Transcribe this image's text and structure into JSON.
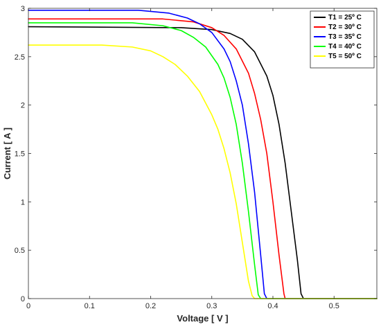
{
  "chart_data": {
    "type": "line",
    "xlabel": "Voltage [ V ]",
    "ylabel": "Current [ A ]",
    "xlim": [
      0,
      0.57
    ],
    "ylim": [
      0,
      3
    ],
    "x_ticks": [
      {
        "value": 0,
        "label": "0"
      },
      {
        "value": 0.1,
        "label": "0.1"
      },
      {
        "value": 0.2,
        "label": "0.2"
      },
      {
        "value": 0.3,
        "label": "0.3"
      },
      {
        "value": 0.4,
        "label": "0.4"
      },
      {
        "value": 0.5,
        "label": "0.5"
      }
    ],
    "y_ticks": [
      {
        "value": 0,
        "label": "0"
      },
      {
        "value": 0.5,
        "label": "0.5"
      },
      {
        "value": 1,
        "label": "1"
      },
      {
        "value": 1.5,
        "label": "1.5"
      },
      {
        "value": 2,
        "label": "2"
      },
      {
        "value": 2.5,
        "label": "2.5"
      },
      {
        "value": 3,
        "label": "3"
      }
    ],
    "grid": false,
    "legend_position": "top-right",
    "series": [
      {
        "name": "T1 = 25º C",
        "color": "#000000",
        "x": [
          0,
          0.25,
          0.3,
          0.33,
          0.35,
          0.37,
          0.39,
          0.4,
          0.41,
          0.42,
          0.43,
          0.44,
          0.446,
          0.45,
          0.57
        ],
        "y": [
          2.81,
          2.8,
          2.78,
          2.74,
          2.68,
          2.55,
          2.3,
          2.1,
          1.8,
          1.4,
          0.9,
          0.4,
          0.05,
          0,
          0
        ]
      },
      {
        "name": "T2 = 30º C",
        "color": "#ff0000",
        "x": [
          0,
          0.22,
          0.27,
          0.3,
          0.32,
          0.34,
          0.36,
          0.37,
          0.38,
          0.39,
          0.4,
          0.41,
          0.418,
          0.42,
          0.57
        ],
        "y": [
          2.89,
          2.89,
          2.86,
          2.8,
          2.72,
          2.58,
          2.33,
          2.12,
          1.85,
          1.5,
          1.0,
          0.45,
          0.05,
          0,
          0
        ]
      },
      {
        "name": "T3 = 35º C",
        "color": "#0000ff",
        "x": [
          0,
          0.18,
          0.23,
          0.26,
          0.28,
          0.3,
          0.32,
          0.33,
          0.34,
          0.35,
          0.36,
          0.37,
          0.38,
          0.386,
          0.39,
          0.57
        ],
        "y": [
          2.98,
          2.98,
          2.95,
          2.9,
          2.84,
          2.75,
          2.58,
          2.45,
          2.25,
          2.0,
          1.6,
          1.1,
          0.45,
          0.05,
          0,
          0
        ]
      },
      {
        "name": "T4 = 40º C",
        "color": "#00ff00",
        "x": [
          0,
          0.17,
          0.22,
          0.25,
          0.27,
          0.29,
          0.31,
          0.32,
          0.33,
          0.34,
          0.35,
          0.36,
          0.37,
          0.376,
          0.38,
          0.57
        ],
        "y": [
          2.85,
          2.85,
          2.82,
          2.77,
          2.7,
          2.6,
          2.42,
          2.28,
          2.08,
          1.8,
          1.4,
          0.9,
          0.35,
          0.04,
          0,
          0
        ]
      },
      {
        "name": "T5 = 50º C",
        "color": "#ffff00",
        "x": [
          0,
          0.12,
          0.17,
          0.2,
          0.22,
          0.24,
          0.26,
          0.28,
          0.3,
          0.31,
          0.32,
          0.33,
          0.34,
          0.35,
          0.36,
          0.366,
          0.37,
          0.57
        ],
        "y": [
          2.62,
          2.62,
          2.6,
          2.56,
          2.5,
          2.42,
          2.3,
          2.14,
          1.9,
          1.75,
          1.55,
          1.3,
          0.98,
          0.58,
          0.18,
          0.03,
          0,
          0
        ]
      }
    ]
  }
}
